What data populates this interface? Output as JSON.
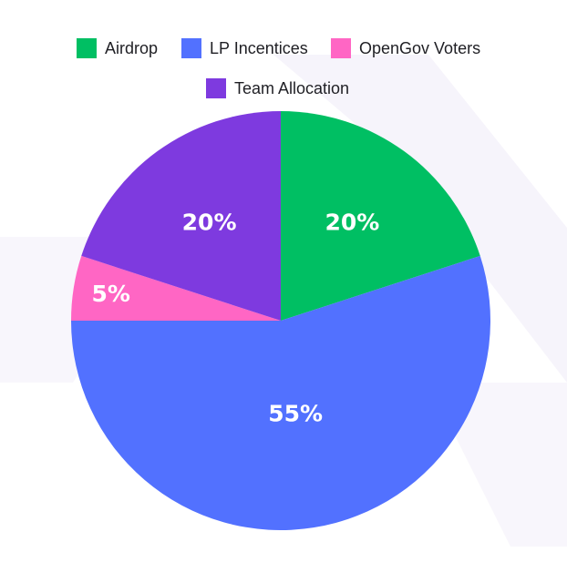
{
  "chart_data": {
    "type": "pie",
    "title": "",
    "categories": [
      "Airdrop",
      "LP Incentices",
      "OpenGov Voters",
      "Team Allocation"
    ],
    "values": [
      20,
      55,
      5,
      20
    ],
    "value_labels": [
      "20%",
      "55%",
      "5%",
      "20%"
    ],
    "colors": [
      "#00bf63",
      "#5271ff",
      "#ff66c4",
      "#7e3adf"
    ],
    "start": "12 o'clock",
    "direction": "clockwise",
    "legend_position": "top"
  },
  "legend": [
    {
      "label": "Airdrop",
      "color": "#00bf63"
    },
    {
      "label": "LP Incentices",
      "color": "#5271ff"
    },
    {
      "label": "OpenGov Voters",
      "color": "#ff66c4"
    },
    {
      "label": "Team Allocation",
      "color": "#7e3adf"
    }
  ]
}
